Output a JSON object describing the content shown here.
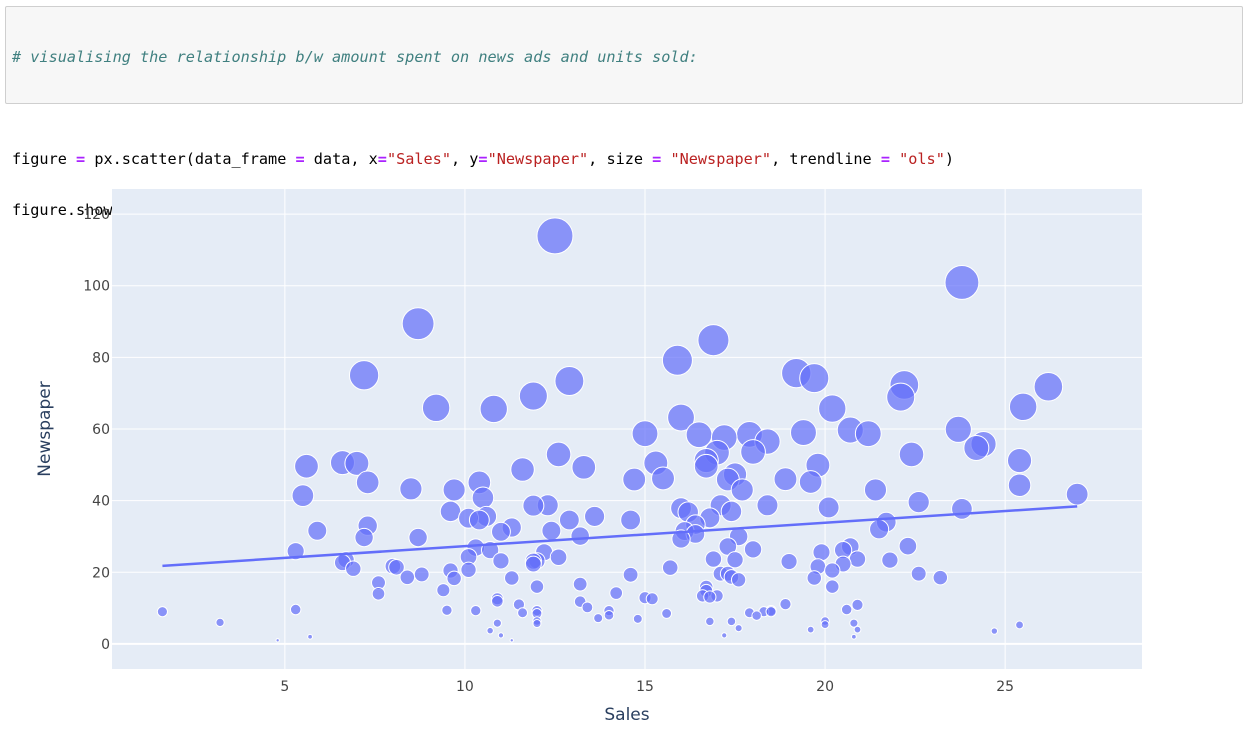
{
  "code_cell": {
    "comment": "# visualising the relationship b/w amount spent on news ads and units sold:",
    "line2": [
      {
        "t": "figure ",
        "c": ""
      },
      {
        "t": "=",
        "c": "op"
      },
      {
        "t": " px.scatter(data_frame ",
        "c": ""
      },
      {
        "t": "=",
        "c": "op"
      },
      {
        "t": " data, x",
        "c": ""
      },
      {
        "t": "=",
        "c": "op"
      },
      {
        "t": "\"Sales\"",
        "c": "str"
      },
      {
        "t": ", y",
        "c": ""
      },
      {
        "t": "=",
        "c": "op"
      },
      {
        "t": "\"Newspaper\"",
        "c": "str"
      },
      {
        "t": ", size ",
        "c": ""
      },
      {
        "t": "=",
        "c": "op"
      },
      {
        "t": " ",
        "c": ""
      },
      {
        "t": "\"Newspaper\"",
        "c": "str"
      },
      {
        "t": ", trendline ",
        "c": ""
      },
      {
        "t": "=",
        "c": "op"
      },
      {
        "t": " ",
        "c": ""
      },
      {
        "t": "\"ols\"",
        "c": "str"
      },
      {
        "t": ")",
        "c": ""
      }
    ],
    "line3": "figure.show()"
  },
  "chart_data": {
    "type": "scatter",
    "title": "",
    "xlabel": "Sales",
    "ylabel": "Newspaper",
    "xlim": [
      0.2,
      28.8
    ],
    "ylim": [
      -7,
      127
    ],
    "xticks": [
      5,
      10,
      15,
      20,
      25
    ],
    "yticks": [
      0,
      20,
      40,
      60,
      80,
      100,
      120
    ],
    "grid": true,
    "size_by": "Newspaper",
    "colors": {
      "marker": "#636efa",
      "plot_bg": "#e5ecf6",
      "grid": "#ffffff",
      "trend": "#636efa"
    },
    "trendline": {
      "x": [
        1.6,
        27.0
      ],
      "y": [
        21.8,
        38.4
      ]
    },
    "points": [
      [
        1.6,
        9
      ],
      [
        3.2,
        6
      ],
      [
        4.8,
        1
      ],
      [
        5.3,
        9.6
      ],
      [
        5.3,
        25.9
      ],
      [
        5.5,
        41.4
      ],
      [
        5.6,
        49.6
      ],
      [
        5.7,
        2
      ],
      [
        5.9,
        31.6
      ],
      [
        6.6,
        50.6
      ],
      [
        6.6,
        22.7
      ],
      [
        6.7,
        23.5
      ],
      [
        6.9,
        21
      ],
      [
        7.0,
        50.4
      ],
      [
        7.2,
        75
      ],
      [
        7.2,
        29.7
      ],
      [
        7.3,
        33
      ],
      [
        7.3,
        45.1
      ],
      [
        7.6,
        17.1
      ],
      [
        7.6,
        14
      ],
      [
        8.0,
        21.7
      ],
      [
        8.1,
        21.4
      ],
      [
        8.4,
        18.6
      ],
      [
        8.5,
        43.3
      ],
      [
        8.7,
        89.4
      ],
      [
        8.7,
        29.7
      ],
      [
        8.8,
        19.4
      ],
      [
        9.2,
        65.9
      ],
      [
        9.4,
        15
      ],
      [
        9.5,
        9.4
      ],
      [
        9.6,
        20.5
      ],
      [
        9.6,
        37
      ],
      [
        9.7,
        18.3
      ],
      [
        9.7,
        43
      ],
      [
        10.1,
        35.1
      ],
      [
        10.1,
        20.7
      ],
      [
        10.1,
        24.3
      ],
      [
        10.3,
        26.9
      ],
      [
        10.3,
        9.3
      ],
      [
        10.4,
        45.1
      ],
      [
        10.4,
        34.6
      ],
      [
        10.5,
        40.8
      ],
      [
        10.6,
        35.6
      ],
      [
        10.7,
        26.2
      ],
      [
        10.7,
        3.7
      ],
      [
        10.8,
        65.6
      ],
      [
        10.9,
        5.8
      ],
      [
        10.9,
        12.6
      ],
      [
        10.9,
        11.9
      ],
      [
        11.0,
        31.3
      ],
      [
        11.0,
        2.4
      ],
      [
        11.0,
        23.2
      ],
      [
        11.3,
        18.4
      ],
      [
        11.3,
        32.5
      ],
      [
        11.3,
        1
      ],
      [
        11.5,
        11
      ],
      [
        11.6,
        48.7
      ],
      [
        11.6,
        8.7
      ],
      [
        11.9,
        23.1
      ],
      [
        11.9,
        22.3
      ],
      [
        11.9,
        38.6
      ],
      [
        11.9,
        69.2
      ],
      [
        12.0,
        8.5
      ],
      [
        12.0,
        5.7
      ],
      [
        12.0,
        6.4
      ],
      [
        12.0,
        9.3
      ],
      [
        12.0,
        16
      ],
      [
        12.0,
        23.2
      ],
      [
        12.2,
        25.6
      ],
      [
        12.3,
        38.7
      ],
      [
        12.4,
        31.6
      ],
      [
        12.5,
        113.9
      ],
      [
        12.6,
        52.9
      ],
      [
        12.6,
        24.2
      ],
      [
        12.9,
        73.4
      ],
      [
        12.9,
        34.6
      ],
      [
        13.2,
        11.8
      ],
      [
        13.2,
        30.1
      ],
      [
        13.2,
        16.7
      ],
      [
        13.3,
        49.3
      ],
      [
        13.4,
        10.2
      ],
      [
        13.6,
        35.6
      ],
      [
        13.7,
        7.2
      ],
      [
        14.0,
        9.3
      ],
      [
        14.0,
        8
      ],
      [
        14.2,
        14.2
      ],
      [
        14.6,
        34.6
      ],
      [
        14.6,
        19.3
      ],
      [
        14.7,
        45.9
      ],
      [
        14.8,
        7
      ],
      [
        15.0,
        58.7
      ],
      [
        15.0,
        12.9
      ],
      [
        15.2,
        12.6
      ],
      [
        15.3,
        50.5
      ],
      [
        15.5,
        46.2
      ],
      [
        15.6,
        8.5
      ],
      [
        15.7,
        21.3
      ],
      [
        15.9,
        79.2
      ],
      [
        16.0,
        63.2
      ],
      [
        16.0,
        37.9
      ],
      [
        16.0,
        29.3
      ],
      [
        16.1,
        31.5
      ],
      [
        16.2,
        36.8
      ],
      [
        16.4,
        33.3
      ],
      [
        16.4,
        30.7
      ],
      [
        16.5,
        58.4
      ],
      [
        16.6,
        13.4
      ],
      [
        16.7,
        15.9
      ],
      [
        16.7,
        14.8
      ],
      [
        16.7,
        49.6
      ],
      [
        16.7,
        51.2
      ],
      [
        16.8,
        35.2
      ],
      [
        16.8,
        6.3
      ],
      [
        16.8,
        13.1
      ],
      [
        16.9,
        84.8
      ],
      [
        16.9,
        23.7
      ],
      [
        17.0,
        53.4
      ],
      [
        17.0,
        13.4
      ],
      [
        17.1,
        19.6
      ],
      [
        17.1,
        38.7
      ],
      [
        17.2,
        57.6
      ],
      [
        17.2,
        2.4
      ],
      [
        17.3,
        45.9
      ],
      [
        17.3,
        27.2
      ],
      [
        17.3,
        19.6
      ],
      [
        17.4,
        18.7
      ],
      [
        17.4,
        6.3
      ],
      [
        17.4,
        37
      ],
      [
        17.5,
        47.3
      ],
      [
        17.5,
        23.5
      ],
      [
        17.6,
        4.4
      ],
      [
        17.6,
        17.9
      ],
      [
        17.6,
        30
      ],
      [
        17.7,
        43
      ],
      [
        17.9,
        8.7
      ],
      [
        17.9,
        58.5
      ],
      [
        18.0,
        53.6
      ],
      [
        18.0,
        26.4
      ],
      [
        18.1,
        7.9
      ],
      [
        18.3,
        9
      ],
      [
        18.4,
        38.7
      ],
      [
        18.4,
        56.5
      ],
      [
        18.5,
        9
      ],
      [
        18.5,
        9.3
      ],
      [
        18.9,
        46
      ],
      [
        18.9,
        11.1
      ],
      [
        19.0,
        23
      ],
      [
        19.2,
        75.6
      ],
      [
        19.4,
        59
      ],
      [
        19.6,
        45.2
      ],
      [
        19.6,
        4
      ],
      [
        19.7,
        74.2
      ],
      [
        19.7,
        18.4
      ],
      [
        19.8,
        49.9
      ],
      [
        19.8,
        21.6
      ],
      [
        19.9,
        25.6
      ],
      [
        20.0,
        6.4
      ],
      [
        20.0,
        5.4
      ],
      [
        20.1,
        38.1
      ],
      [
        20.2,
        16
      ],
      [
        20.2,
        20.5
      ],
      [
        20.2,
        65.7
      ],
      [
        20.5,
        22.3
      ],
      [
        20.5,
        26.2
      ],
      [
        20.6,
        9.6
      ],
      [
        20.7,
        27.2
      ],
      [
        20.7,
        59.7
      ],
      [
        20.8,
        2
      ],
      [
        20.8,
        5.8
      ],
      [
        20.9,
        23.7
      ],
      [
        20.9,
        4
      ],
      [
        20.9,
        10.9
      ],
      [
        21.2,
        58.7
      ],
      [
        21.4,
        43
      ],
      [
        21.5,
        32
      ],
      [
        21.7,
        34
      ],
      [
        21.8,
        23.4
      ],
      [
        22.1,
        68.9
      ],
      [
        22.2,
        72.3
      ],
      [
        22.3,
        27.3
      ],
      [
        22.4,
        52.9
      ],
      [
        22.6,
        39.6
      ],
      [
        22.6,
        19.6
      ],
      [
        23.2,
        18.5
      ],
      [
        23.7,
        59.9
      ],
      [
        23.8,
        100.9
      ],
      [
        23.8,
        37.7
      ],
      [
        24.2,
        54.7
      ],
      [
        24.4,
        55.8
      ],
      [
        24.7,
        3.6
      ],
      [
        25.4,
        51.2
      ],
      [
        25.4,
        44.3
      ],
      [
        25.4,
        5.3
      ],
      [
        25.5,
        66.2
      ],
      [
        26.2,
        71.8
      ],
      [
        27.0,
        41.8
      ]
    ]
  }
}
